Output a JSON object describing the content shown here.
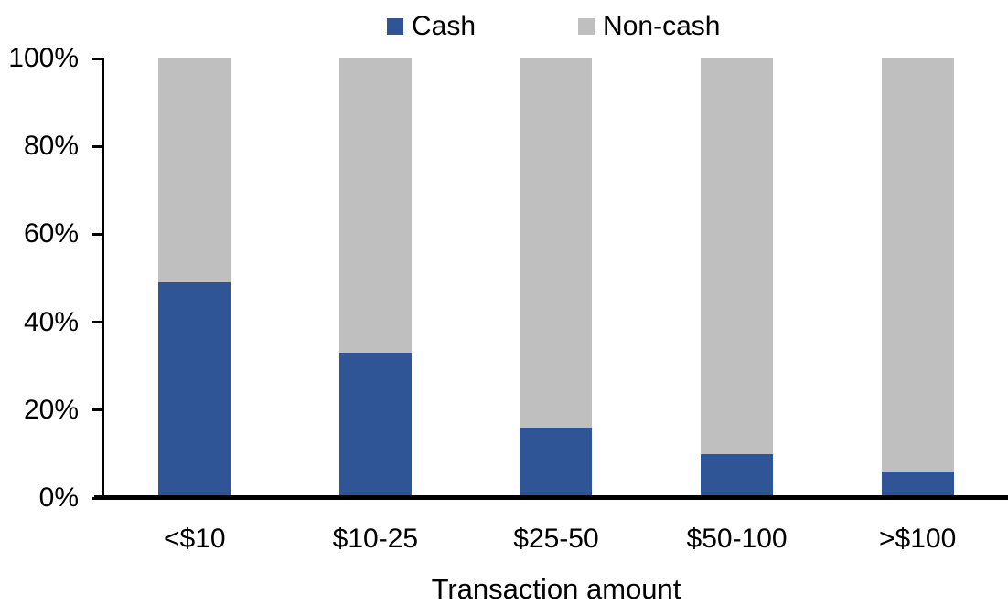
{
  "chart_data": {
    "type": "bar",
    "subtype": "stacked-100-percent",
    "title": "",
    "xlabel": "Transaction amount",
    "ylabel": "",
    "categories": [
      "<$10",
      "$10-25",
      "$25-50",
      "$50-100",
      ">$100"
    ],
    "series": [
      {
        "name": "Cash",
        "color": "#2F5597",
        "values": [
          49,
          33,
          16,
          10,
          6
        ]
      },
      {
        "name": "Non-cash",
        "color": "#BFBFBF",
        "values": [
          51,
          67,
          84,
          90,
          94
        ]
      }
    ],
    "ylim": [
      0,
      100
    ],
    "yticks": [
      "0%",
      "20%",
      "40%",
      "60%",
      "80%",
      "100%"
    ],
    "grid": false,
    "legend_position": "top-center",
    "axis_color": "#000000",
    "text_color": "#000000",
    "background_color": "#FFFFFF"
  }
}
